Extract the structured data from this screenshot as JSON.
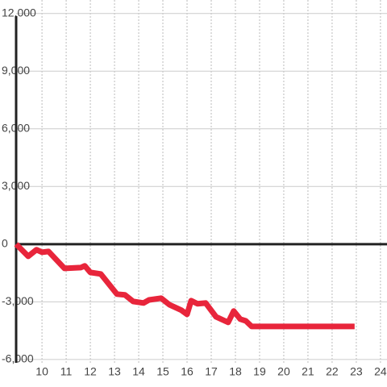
{
  "chart_data": {
    "type": "line",
    "x": [
      8.93,
      9.43,
      9.77,
      10.0,
      10.27,
      10.93,
      11.6,
      11.77,
      12.0,
      12.43,
      13.1,
      13.43,
      13.77,
      14.2,
      14.43,
      14.93,
      15.27,
      15.77,
      16.0,
      16.17,
      16.43,
      16.77,
      17.2,
      17.7,
      17.93,
      18.2,
      18.43,
      18.67,
      22.93
    ],
    "series": [
      {
        "color": "#e8253b",
        "values": [
          0,
          -630,
          -290,
          -420,
          -380,
          -1260,
          -1220,
          -1130,
          -1470,
          -1550,
          -2600,
          -2640,
          -2980,
          -3060,
          -2900,
          -2810,
          -3150,
          -3440,
          -3650,
          -2940,
          -3100,
          -3060,
          -3780,
          -4070,
          -3480,
          -3900,
          -3990,
          -4280,
          -4280
        ]
      }
    ],
    "xlim": [
      8.93,
      24.27
    ],
    "xticks": [
      10,
      11,
      12,
      13,
      14,
      15,
      16,
      17,
      18,
      19,
      20,
      21,
      22,
      23,
      24
    ],
    "ylim": [
      -7430,
      12700
    ],
    "yticks": [
      {
        "value": -6000,
        "label": "-6,000"
      },
      {
        "value": -3000,
        "label": "-3,000"
      },
      0,
      {
        "value": 3000,
        "label": "3,000"
      },
      {
        "value": 6000,
        "label": "6,000"
      },
      {
        "value": 9000,
        "label": "9,000"
      },
      {
        "value": 12000,
        "label": "12,000"
      }
    ],
    "grid": true
  }
}
